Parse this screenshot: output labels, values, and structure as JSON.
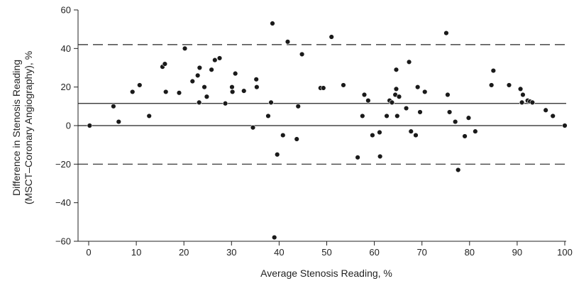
{
  "chart_data": {
    "type": "scatter",
    "title": "",
    "xlabel": "Average Stenosis Reading, %",
    "ylabel_line1": "Difference in Stenosis Reading",
    "ylabel_line2": "(MSCT–Coronary Angiography), %",
    "xlim": [
      0,
      100
    ],
    "ylim": [
      -60,
      60
    ],
    "xticks": [
      0,
      10,
      20,
      30,
      40,
      50,
      60,
      70,
      80,
      90,
      100
    ],
    "yticks": [
      -60,
      -40,
      -20,
      0,
      20,
      40,
      60
    ],
    "ytick_labels": [
      "−60",
      "−40",
      "−20",
      "0",
      "20",
      "40",
      "60"
    ],
    "grid": false,
    "reference_lines": {
      "solid": [
        0,
        11.5
      ],
      "dashed": [
        -20,
        42
      ]
    },
    "point_color": "#1a1a1a",
    "points": [
      [
        0.2,
        0
      ],
      [
        5.2,
        10
      ],
      [
        6.3,
        2
      ],
      [
        9.2,
        17.5
      ],
      [
        10.7,
        21
      ],
      [
        12.7,
        5
      ],
      [
        15.5,
        30.5
      ],
      [
        16,
        32
      ],
      [
        16.2,
        17.5
      ],
      [
        19,
        17
      ],
      [
        20.2,
        40
      ],
      [
        21.8,
        23
      ],
      [
        22.9,
        26
      ],
      [
        23.3,
        30
      ],
      [
        23.2,
        12
      ],
      [
        24.3,
        20
      ],
      [
        24.8,
        15
      ],
      [
        25.8,
        29
      ],
      [
        26.5,
        34
      ],
      [
        27.5,
        35
      ],
      [
        28.7,
        11.5
      ],
      [
        30.1,
        20
      ],
      [
        30.2,
        17.5
      ],
      [
        30.8,
        27
      ],
      [
        32.6,
        18
      ],
      [
        34.5,
        -1
      ],
      [
        35.2,
        24
      ],
      [
        35.3,
        20
      ],
      [
        37.7,
        5
      ],
      [
        38.3,
        12
      ],
      [
        38.6,
        53
      ],
      [
        39.0,
        -58
      ],
      [
        39.6,
        -15
      ],
      [
        40.8,
        -5
      ],
      [
        41.8,
        43.5
      ],
      [
        43.7,
        -7
      ],
      [
        44.0,
        10
      ],
      [
        44.8,
        37
      ],
      [
        48.7,
        19.5
      ],
      [
        49.3,
        19.5
      ],
      [
        51.0,
        46
      ],
      [
        53.5,
        21
      ],
      [
        56.5,
        -16.5
      ],
      [
        57.5,
        5
      ],
      [
        57.9,
        16
      ],
      [
        58.7,
        13
      ],
      [
        59.6,
        -5
      ],
      [
        61.1,
        -3.5
      ],
      [
        61.2,
        -16
      ],
      [
        62.6,
        5
      ],
      [
        63.2,
        13
      ],
      [
        63.7,
        12
      ],
      [
        64.4,
        16
      ],
      [
        64.6,
        19
      ],
      [
        64.6,
        29
      ],
      [
        64.8,
        5
      ],
      [
        65.2,
        15
      ],
      [
        66.7,
        9
      ],
      [
        67.3,
        33
      ],
      [
        67.7,
        -3
      ],
      [
        68.7,
        -5
      ],
      [
        69.1,
        20
      ],
      [
        69.6,
        7
      ],
      [
        70.6,
        17.5
      ],
      [
        75.1,
        48
      ],
      [
        75.4,
        16
      ],
      [
        75.8,
        7
      ],
      [
        77.0,
        2
      ],
      [
        77.6,
        -23
      ],
      [
        79.0,
        -5.5
      ],
      [
        79.8,
        4
      ],
      [
        81.2,
        -3
      ],
      [
        84.6,
        21
      ],
      [
        85.0,
        28.5
      ],
      [
        88.3,
        21
      ],
      [
        90.7,
        19
      ],
      [
        91.0,
        12
      ],
      [
        91.2,
        16
      ],
      [
        92.2,
        13
      ],
      [
        92.7,
        12.5
      ],
      [
        93.2,
        12
      ],
      [
        96.0,
        8
      ],
      [
        97.5,
        5
      ],
      [
        100.0,
        0
      ]
    ]
  }
}
